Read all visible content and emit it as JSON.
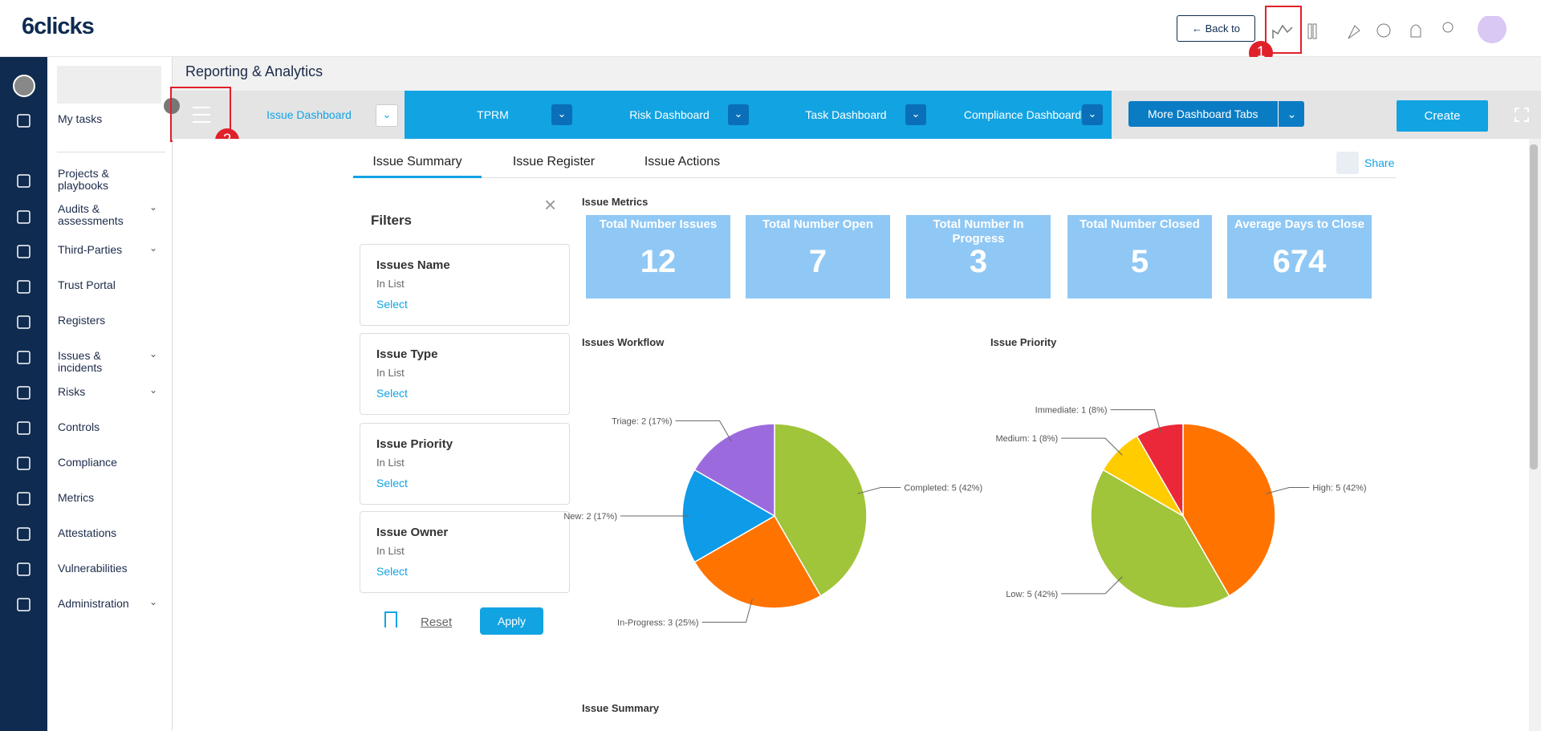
{
  "header": {
    "logo": "6clicks",
    "back_button": "Back to"
  },
  "annotations": [
    "1",
    "2"
  ],
  "sidebar": {
    "items": [
      "My tasks",
      "Projects & playbooks",
      "Audits & assessments",
      "Third-Parties",
      "Trust Portal",
      "Registers",
      "Issues & incidents",
      "Risks",
      "Controls",
      "Compliance",
      "Metrics",
      "Attestations",
      "Vulnerabilities",
      "Administration"
    ]
  },
  "page_title": "Reporting & Analytics",
  "dashboard_tabs": [
    "Issue Dashboard",
    "TPRM",
    "Risk Dashboard",
    "Task Dashboard",
    "Compliance Dashboard"
  ],
  "more_tabs": "More Dashboard Tabs",
  "create": "Create",
  "sub_tabs": [
    "Issue Summary",
    "Issue Register",
    "Issue Actions"
  ],
  "share": "Share",
  "filters": {
    "title": "Filters",
    "items": [
      {
        "name": "Issues Name",
        "operator": "In List",
        "action": "Select"
      },
      {
        "name": "Issue Type",
        "operator": "In List",
        "action": "Select"
      },
      {
        "name": "Issue Priority",
        "operator": "In List",
        "action": "Select"
      },
      {
        "name": "Issue Owner",
        "operator": "In List",
        "action": "Select"
      }
    ],
    "reset": "Reset",
    "apply": "Apply"
  },
  "metrics": {
    "title": "Issue Metrics",
    "cards": [
      {
        "label": "Total Number Issues",
        "value": 12
      },
      {
        "label": "Total Number Open",
        "value": 7
      },
      {
        "label": "Total Number In Progress",
        "value": 3
      },
      {
        "label": "Total Number Closed",
        "value": 5
      },
      {
        "label": "Average Days to Close",
        "value": 674
      }
    ]
  },
  "charts": [
    {
      "type": "pie",
      "title": "Issues Workflow",
      "slices": [
        {
          "label": "Completed: 5 (42%)",
          "value": 5,
          "color": "#a0c43a"
        },
        {
          "label": "In-Progress: 3 (25%)",
          "value": 3,
          "color": "#ff7300"
        },
        {
          "label": "New: 2 (17%)",
          "value": 2,
          "color": "#0e9be8"
        },
        {
          "label": "Triage: 2 (17%)",
          "value": 2,
          "color": "#9b6bdd"
        }
      ]
    },
    {
      "type": "pie",
      "title": "Issue Priority",
      "slices": [
        {
          "label": "High: 5 (42%)",
          "value": 5,
          "color": "#ff7300"
        },
        {
          "label": "Low: 5 (42%)",
          "value": 5,
          "color": "#a0c43a"
        },
        {
          "label": "Medium: 1 (8%)",
          "value": 1,
          "color": "#ffcc00"
        },
        {
          "label": "Immediate: 1 (8%)",
          "value": 1,
          "color": "#ea2839"
        }
      ]
    }
  ],
  "section_title": "Issue Summary"
}
